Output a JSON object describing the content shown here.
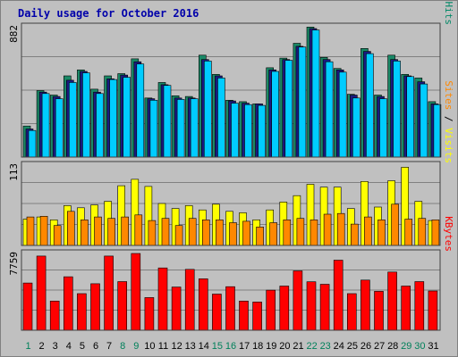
{
  "chart_data": {
    "type": "bar",
    "title": "Daily usage for October 2016",
    "categories": [
      "1",
      "2",
      "3",
      "4",
      "5",
      "6",
      "7",
      "8",
      "9",
      "10",
      "11",
      "12",
      "13",
      "14",
      "15",
      "16",
      "17",
      "18",
      "19",
      "20",
      "21",
      "22",
      "23",
      "24",
      "25",
      "26",
      "27",
      "28",
      "29",
      "30",
      "31"
    ],
    "weekend_days": [
      "1",
      "8",
      "9",
      "15",
      "16",
      "22",
      "23",
      "29",
      "30"
    ],
    "panels": [
      {
        "id": "top",
        "ymax": 882,
        "ymax_label": "882",
        "ylabel_parts": [
          {
            "text": "Pages",
            "color": "#00ccff"
          },
          {
            "text": " / ",
            "color": "#000000"
          },
          {
            "text": "Files",
            "color": "#0000cc"
          },
          {
            "text": " / ",
            "color": "#000000"
          },
          {
            "text": "Hits",
            "color": "#008866"
          }
        ],
        "series": [
          {
            "name": "Hits",
            "color": "#1a8866",
            "values": [
              210,
              450,
              420,
              550,
              590,
              460,
              550,
              565,
              665,
              400,
              505,
              415,
              410,
              690,
              560,
              385,
              375,
              360,
              605,
              670,
              770,
              880,
              675,
              600,
              425,
              735,
              420,
              690,
              560,
              535,
              375
            ]
          },
          {
            "name": "Files",
            "color": "#1a1a80",
            "values": [
              190,
              440,
              410,
              520,
              580,
              440,
              530,
              555,
              645,
              395,
              490,
              400,
              400,
              660,
              550,
              380,
              365,
              360,
              590,
              660,
              750,
              870,
              660,
              590,
              420,
              715,
              410,
              660,
              550,
              510,
              360
            ]
          },
          {
            "name": "Pages",
            "color": "#00ccff",
            "values": [
              180,
              430,
              395,
              505,
              570,
              430,
              525,
              540,
              630,
              385,
              485,
              390,
              395,
              650,
              535,
              365,
              355,
              350,
              580,
              655,
              745,
              860,
              645,
              575,
              400,
              700,
              395,
              650,
              545,
              495,
              355
            ]
          }
        ]
      },
      {
        "id": "middle",
        "ymax": 113,
        "ymax_label": "113",
        "ylabel_parts": [
          {
            "text": "Sites",
            "color": "#ff8800"
          },
          {
            "text": " / ",
            "color": "#000000"
          },
          {
            "text": "Visits",
            "color": "#ffff00"
          }
        ],
        "series": [
          {
            "name": "Visits",
            "color": "#ffff00",
            "values": [
              37,
              40,
              36,
              56,
              53,
              57,
              62,
              84,
              93,
              83,
              59,
              52,
              56,
              50,
              58,
              48,
              46,
              36,
              50,
              61,
              70,
              86,
              82,
              82,
              52,
              90,
              54,
              91,
              110,
              62,
              35
            ]
          },
          {
            "name": "Sites",
            "color": "#ff8800",
            "values": [
              40,
              41,
              28,
              48,
              36,
              40,
              38,
              40,
              43,
              35,
              38,
              28,
              38,
              36,
              36,
              32,
              34,
              26,
              32,
              36,
              38,
              36,
              44,
              45,
              30,
              40,
              36,
              58,
              37,
              38,
              36
            ]
          }
        ]
      },
      {
        "id": "bottom",
        "ymax": 7759,
        "ymax_label": "7759",
        "ylabel_parts": [
          {
            "text": "KBytes",
            "color": "#ff0000"
          }
        ],
        "series": [
          {
            "name": "KBytes",
            "color": "#ff0000",
            "values": [
              4770,
              7500,
              2950,
              5400,
              3700,
              4700,
              7500,
              4920,
              7759,
              3300,
              6300,
              4370,
              6150,
              5200,
              3650,
              4400,
              2950,
              2850,
              4050,
              4470,
              6000,
              4900,
              4650,
              7080,
              3700,
              5070,
              3930,
              5880,
              4470,
              4920,
              3970
            ]
          }
        ]
      }
    ]
  }
}
